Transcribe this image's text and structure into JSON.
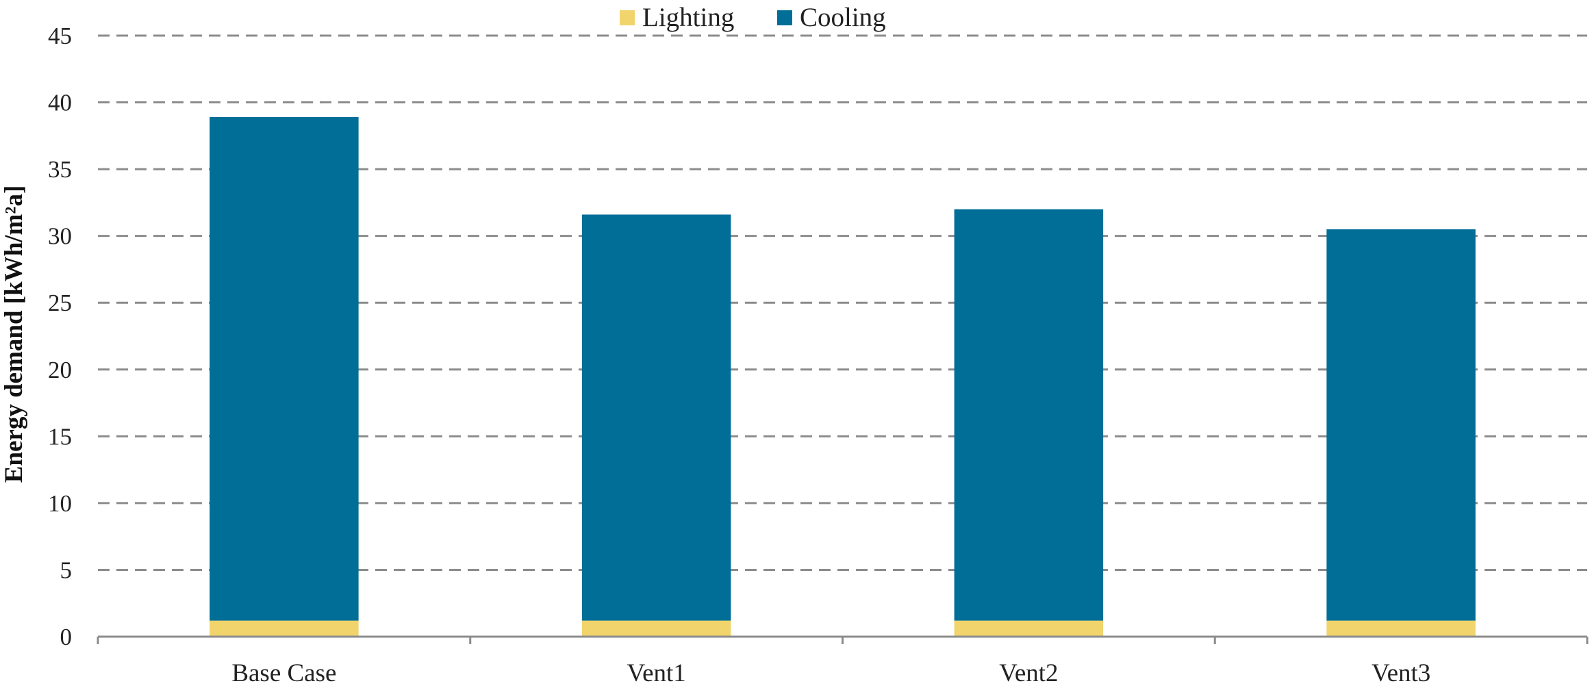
{
  "chart_data": {
    "type": "bar",
    "stacked": true,
    "categories": [
      "Base Case",
      "Vent1",
      "Vent2",
      "Vent3"
    ],
    "series": [
      {
        "name": "Lighting",
        "color": "#f1d46b",
        "values": [
          1.2,
          1.2,
          1.2,
          1.2
        ]
      },
      {
        "name": "Cooling",
        "color": "#006e96",
        "values": [
          37.7,
          30.4,
          30.8,
          29.3
        ]
      }
    ],
    "title": "",
    "xlabel": "",
    "ylabel": "Energy demand [kWh/m²a]",
    "ylim": [
      0,
      45
    ],
    "yticks": [
      "0",
      "5",
      "10",
      "15",
      "20",
      "25",
      "30",
      "35",
      "40",
      "45"
    ],
    "grid": "horizontal-dashed",
    "legend_position": "top-center"
  }
}
